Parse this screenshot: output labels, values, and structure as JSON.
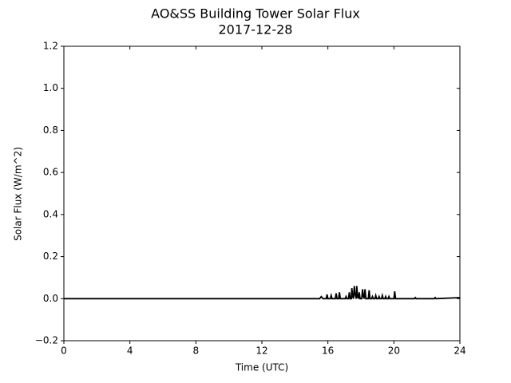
{
  "chart_data": {
    "type": "line",
    "title": "AO&SS Building Tower Solar Flux",
    "subtitle": "2017-12-28",
    "x_label": "Time (UTC)",
    "y_label": "Solar Flux (W/m^2)",
    "x": [
      0,
      15.5,
      15.6,
      15.7,
      15.9,
      15.95,
      16.0,
      16.15,
      16.2,
      16.25,
      16.45,
      16.5,
      16.55,
      16.65,
      16.7,
      16.75,
      17.05,
      17.1,
      17.15,
      17.25,
      17.3,
      17.35,
      17.42,
      17.45,
      17.5,
      17.55,
      17.6,
      17.65,
      17.72,
      17.75,
      17.8,
      17.85,
      17.9,
      17.95,
      18.05,
      18.1,
      18.15,
      18.2,
      18.25,
      18.3,
      18.45,
      18.5,
      18.55,
      18.65,
      18.7,
      18.75,
      18.85,
      18.9,
      18.95,
      19.05,
      19.1,
      19.15,
      19.25,
      19.3,
      19.35,
      19.45,
      19.5,
      19.55,
      19.65,
      19.7,
      19.75,
      20.0,
      20.05,
      20.1,
      21.25,
      21.3,
      21.35,
      22.45,
      22.5,
      22.55,
      24
    ],
    "values": [
      0,
      0,
      0.01,
      0,
      0,
      0.02,
      0,
      0,
      0.015,
      0,
      0,
      0.025,
      0,
      0,
      0.03,
      0,
      0,
      0.01,
      0,
      0,
      0.03,
      0,
      0,
      0.05,
      0.01,
      0,
      0.06,
      0.02,
      0,
      0.06,
      0.01,
      0,
      0.03,
      0,
      0,
      0.045,
      0.01,
      0,
      0.045,
      0,
      0,
      0.04,
      0,
      0,
      0.01,
      0,
      0,
      0.015,
      0,
      0,
      0.01,
      0,
      0,
      0.015,
      0,
      0,
      0.01,
      0,
      0,
      0.01,
      0,
      0,
      0.035,
      0,
      0,
      0.005,
      0,
      0,
      0.005,
      0,
      0.005
    ],
    "color": "#000000",
    "xlim": [
      0,
      24
    ],
    "xticks": [
      0,
      4,
      8,
      12,
      16,
      20,
      24
    ],
    "ylim": [
      -0.2,
      1.2
    ],
    "yticks": [
      {
        "value": -0.2,
        "label": "−0.2"
      },
      {
        "value": 0,
        "label": "0.0"
      },
      0.2,
      0.4,
      0.6,
      0.8,
      {
        "value": 1,
        "label": "1.0"
      },
      1.2
    ]
  }
}
